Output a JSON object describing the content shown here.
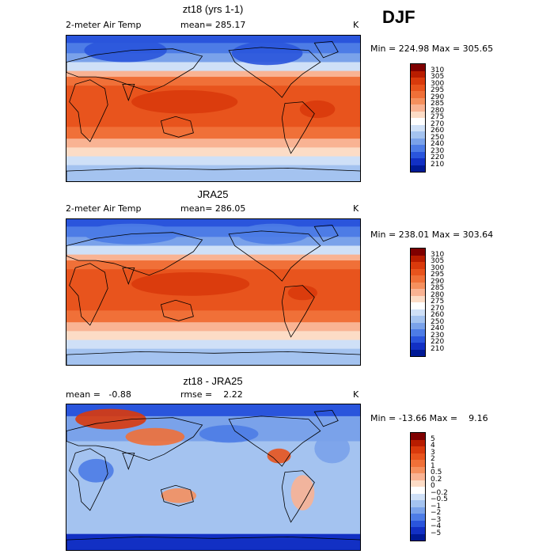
{
  "season": "DJF",
  "panels": [
    {
      "title": "zt18 (yrs 1-1)",
      "left_label": "2-meter Air Temp",
      "center_label": "mean= 285.17",
      "unit": "K",
      "stats": "Min = 224.98 Max = 305.65",
      "scale": "abs"
    },
    {
      "title": "JRA25",
      "left_label": "2-meter Air Temp",
      "center_label": "mean= 286.05",
      "unit": "K",
      "stats": "Min = 238.01 Max = 303.64",
      "scale": "abs"
    },
    {
      "title": "zt18 - JRA25",
      "left_label": "mean =   -0.88",
      "center_label": "rmse =    2.22",
      "unit": "K",
      "stats": "Min = -13.66 Max =    9.16",
      "scale": "diff"
    }
  ],
  "colorbars": {
    "abs": {
      "labels": [
        "310",
        "305",
        "300",
        "295",
        "290",
        "285",
        "280",
        "275",
        "270",
        "260",
        "250",
        "240",
        "230",
        "220",
        "210"
      ],
      "colors": [
        "#7f0000",
        "#b81d00",
        "#d93a0c",
        "#e8541d",
        "#f07038",
        "#f5905e",
        "#f9b393",
        "#fcdcc6",
        "#ffffff",
        "#cfe0f7",
        "#a4c3f0",
        "#7aa2ea",
        "#4d7ce6",
        "#2a55dc",
        "#1230c4",
        "#001a96"
      ]
    },
    "diff": {
      "labels": [
        "5",
        "4",
        "3",
        "2",
        "1",
        "0.5",
        "0.2",
        "0",
        "−0.2",
        "−0.5",
        "−1",
        "−2",
        "−3",
        "−4",
        "−5"
      ],
      "colors": [
        "#7f0000",
        "#b81d00",
        "#d93a0c",
        "#e8541d",
        "#f07038",
        "#f5905e",
        "#f9b393",
        "#fcdcc6",
        "#ffffff",
        "#cfe0f7",
        "#a4c3f0",
        "#7aa2ea",
        "#4d7ce6",
        "#2a55dc",
        "#1230c4",
        "#001a96"
      ]
    }
  }
}
